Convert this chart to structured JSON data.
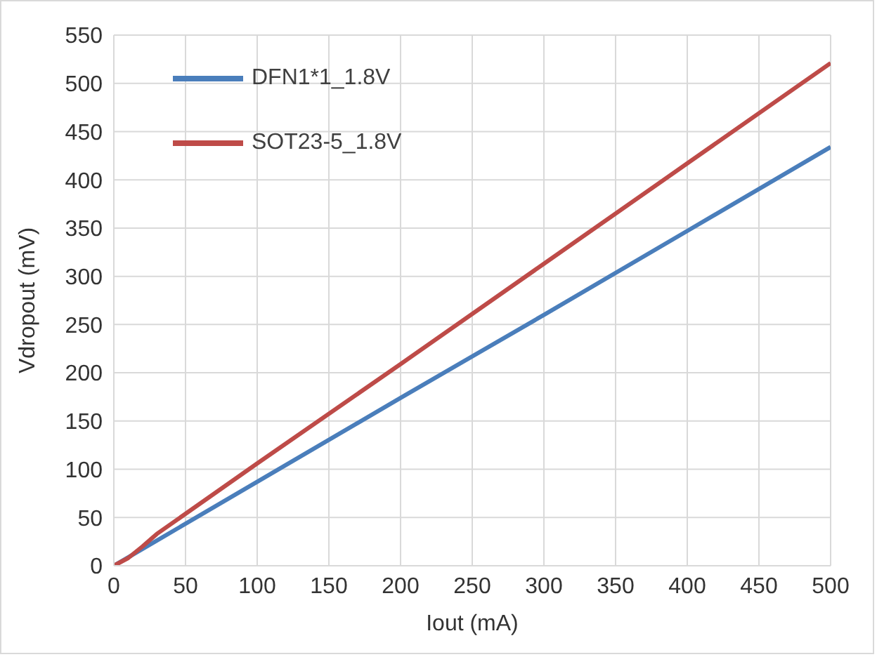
{
  "chart_data": {
    "type": "line",
    "xlabel": "Iout (mA)",
    "ylabel": "Vdropout (mV)",
    "xlim": [
      0,
      500
    ],
    "xticks": [
      0,
      50,
      100,
      150,
      200,
      250,
      300,
      350,
      400,
      450,
      500
    ],
    "ylim": [
      0,
      550
    ],
    "yticks": [
      0,
      50,
      100,
      150,
      200,
      250,
      300,
      350,
      400,
      450,
      500,
      550
    ],
    "grid": true,
    "legend": "top left",
    "marker": "none",
    "line_style": "solid",
    "series": [
      {
        "name": "DFN1*1_1.8V",
        "color": "#4a7ebb",
        "x": [
          0,
          100,
          200,
          300,
          400,
          500
        ],
        "values": [
          0,
          87,
          174,
          260,
          347,
          434
        ]
      },
      {
        "name": "SOT23-5_1.8V",
        "color": "#be4b48",
        "x": [
          0,
          10,
          20,
          30,
          100,
          200,
          300,
          400,
          500
        ],
        "values": [
          0,
          8,
          20,
          33,
          106,
          209,
          313,
          417,
          521
        ]
      }
    ]
  }
}
